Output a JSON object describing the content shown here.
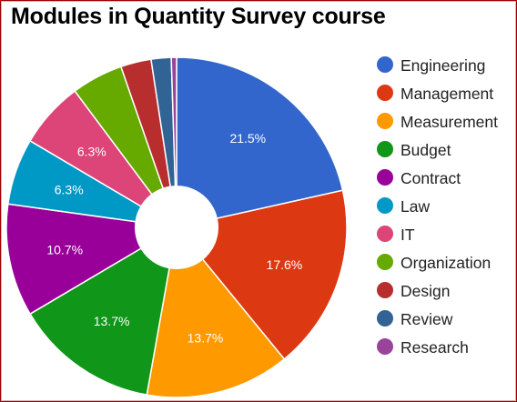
{
  "chart_data": {
    "type": "pie",
    "title": "Modules in Quantity Survey course",
    "categories": [
      "Engineering",
      "Management",
      "Measurement",
      "Budget",
      "Contract",
      "Law",
      "IT",
      "Organization",
      "Design",
      "Review",
      "Research"
    ],
    "values": [
      21.5,
      17.6,
      13.7,
      13.7,
      10.7,
      6.3,
      6.3,
      4.9,
      2.9,
      1.9,
      0.5
    ],
    "value_labels": [
      "21.5%",
      "17.6%",
      "13.7%",
      "13.7%",
      "10.7%",
      "6.3%",
      "6.3%",
      "",
      "",
      "",
      ""
    ],
    "colors": [
      "#3366cc",
      "#dc3912",
      "#ff9900",
      "#109618",
      "#990099",
      "#0099c6",
      "#dd4477",
      "#66aa00",
      "#b82e2e",
      "#316395",
      "#994499"
    ],
    "donut_hole": true,
    "legend_position": "right"
  }
}
